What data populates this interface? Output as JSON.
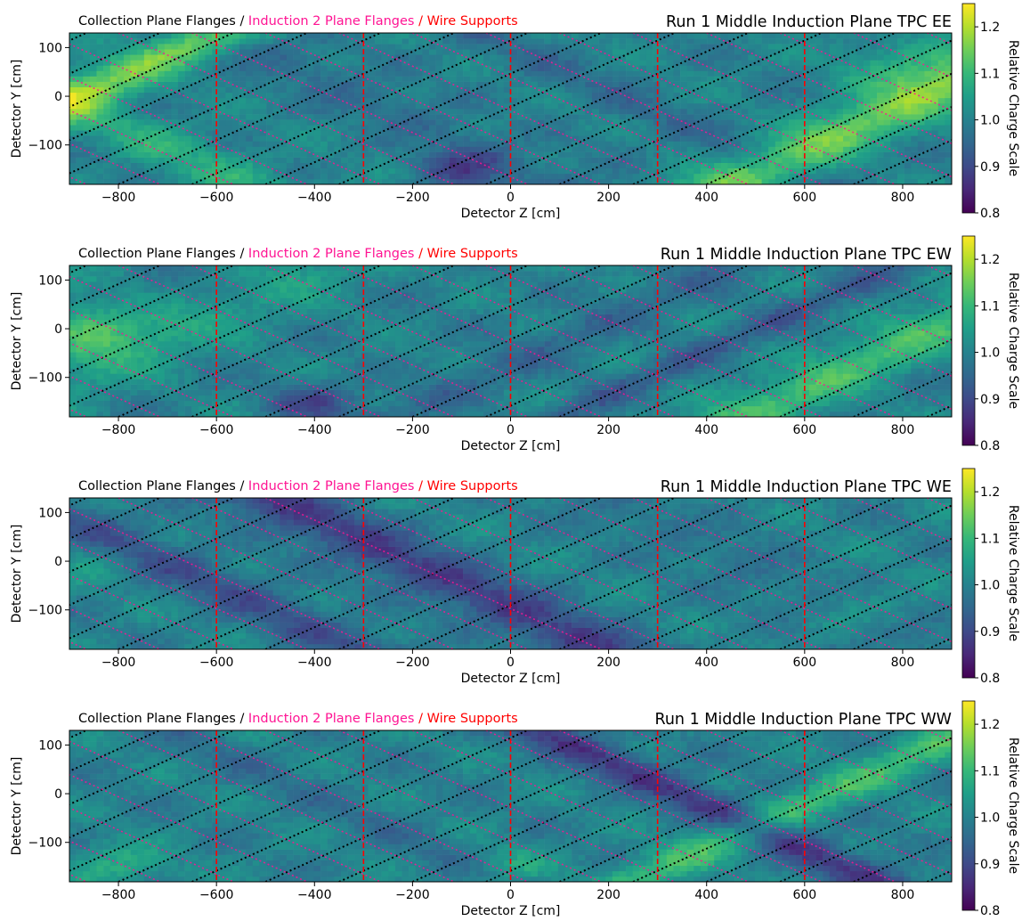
{
  "colors": {
    "collection_flanges": "#000000",
    "induction2_flanges": "#ff1493",
    "wire_supports": "#ff0000",
    "colormap": "viridis"
  },
  "chart_data": [
    {
      "type": "heatmap",
      "title": "Run 1 Middle Induction Plane TPC EE",
      "legend_labels": [
        "Collection Plane Flanges /",
        "Induction 2 Plane Flanges",
        "/ Wire Supports"
      ],
      "xlabel": "Detector Z [cm]",
      "ylabel": "Detector Y [cm]",
      "colorbar_label": "Relative Charge Scale",
      "xlim": [
        -900,
        900
      ],
      "ylim": [
        -181,
        130
      ],
      "clim": [
        0.8,
        1.25
      ],
      "xticks": [
        -800,
        -600,
        -400,
        -200,
        0,
        200,
        400,
        600,
        800
      ],
      "yticks": [
        100,
        0,
        -100
      ],
      "cticks": [
        0.8,
        0.9,
        1.0,
        1.1,
        1.2
      ],
      "wire_support_z": [
        -600,
        -300,
        0,
        300,
        600
      ],
      "value_features": [
        {
          "z": -760,
          "y": 60,
          "dir": "pos",
          "width": 70,
          "amp": 0.16
        },
        {
          "z": -800,
          "y": -60,
          "dir": "neg",
          "width": 90,
          "amp": 0.07
        },
        {
          "z": 840,
          "y": 0,
          "dir": "pos",
          "width": 80,
          "amp": 0.16
        },
        {
          "z": 800,
          "y": 60,
          "dir": "none",
          "width": 90,
          "amp": 0.08
        },
        {
          "z": -300,
          "y": 0,
          "dir": "neg",
          "width": 60,
          "amp": -0.05
        },
        {
          "z": -100,
          "y": -150,
          "dir": "none",
          "width": 60,
          "amp": -0.1
        },
        {
          "z": 200,
          "y": 0,
          "dir": "neg",
          "width": 60,
          "amp": -0.04
        }
      ]
    },
    {
      "type": "heatmap",
      "title": "Run 1 Middle Induction Plane TPC EW",
      "legend_labels": [
        "Collection Plane Flanges /",
        "Induction 2 Plane Flanges",
        "/ Wire Supports"
      ],
      "xlabel": "Detector Z [cm]",
      "ylabel": "Detector Y [cm]",
      "colorbar_label": "Relative Charge Scale",
      "xlim": [
        -900,
        900
      ],
      "ylim": [
        -181,
        130
      ],
      "clim": [
        0.8,
        1.25
      ],
      "xticks": [
        -800,
        -600,
        -400,
        -200,
        0,
        200,
        400,
        600,
        800
      ],
      "yticks": [
        100,
        0,
        -100
      ],
      "cticks": [
        0.8,
        0.9,
        1.0,
        1.1,
        1.2
      ],
      "wire_support_z": [
        -600,
        -300,
        0,
        300,
        600
      ],
      "value_features": [
        {
          "z": -850,
          "y": 0,
          "dir": "none",
          "width": 90,
          "amp": 0.12
        },
        {
          "z": -780,
          "y": -60,
          "dir": "pos",
          "width": 70,
          "amp": 0.06
        },
        {
          "z": 820,
          "y": -20,
          "dir": "pos",
          "width": 80,
          "amp": 0.12
        },
        {
          "z": -400,
          "y": -150,
          "dir": "none",
          "width": 60,
          "amp": -0.1
        },
        {
          "z": 150,
          "y": 0,
          "dir": "pos",
          "width": 60,
          "amp": -0.05
        },
        {
          "z": 500,
          "y": 0,
          "dir": "pos",
          "width": 50,
          "amp": -0.06
        }
      ]
    },
    {
      "type": "heatmap",
      "title": "Run 1 Middle Induction Plane TPC WE",
      "legend_labels": [
        "Collection Plane Flanges /",
        "Induction 2 Plane Flanges",
        "/ Wire Supports"
      ],
      "xlabel": "Detector Z [cm]",
      "ylabel": "Detector Y [cm]",
      "colorbar_label": "Relative Charge Scale",
      "xlim": [
        -900,
        900
      ],
      "ylim": [
        -181,
        130
      ],
      "clim": [
        0.8,
        1.25
      ],
      "xticks": [
        -800,
        -600,
        -400,
        -200,
        0,
        200,
        400,
        600,
        800
      ],
      "yticks": [
        100,
        0,
        -100
      ],
      "cticks": [
        0.8,
        0.9,
        1.0,
        1.1,
        1.2
      ],
      "wire_support_z": [
        -600,
        -300,
        0,
        300,
        600
      ],
      "value_features": [
        {
          "z": -700,
          "y": 0,
          "dir": "neg",
          "width": 70,
          "amp": -0.09
        },
        {
          "z": -170,
          "y": -20,
          "dir": "neg",
          "width": 80,
          "amp": -0.13
        },
        {
          "z": -850,
          "y": 0,
          "dir": "none",
          "width": 60,
          "amp": 0.04
        },
        {
          "z": 450,
          "y": 0,
          "dir": "neg",
          "width": 60,
          "amp": -0.04
        },
        {
          "z": 700,
          "y": -100,
          "dir": "none",
          "width": 80,
          "amp": 0.04
        }
      ]
    },
    {
      "type": "heatmap",
      "title": "Run 1 Middle Induction Plane TPC WW",
      "legend_labels": [
        "Collection Plane Flanges /",
        "Induction 2 Plane Flanges",
        "/ Wire Supports"
      ],
      "xlabel": "Detector Z [cm]",
      "ylabel": "Detector Y [cm]",
      "colorbar_label": "Relative Charge Scale",
      "xlim": [
        -900,
        900
      ],
      "ylim": [
        -181,
        130
      ],
      "clim": [
        0.8,
        1.25
      ],
      "xticks": [
        -800,
        -600,
        -400,
        -200,
        0,
        200,
        400,
        600,
        800
      ],
      "yticks": [
        100,
        0,
        -100
      ],
      "cticks": [
        0.8,
        0.9,
        1.0,
        1.1,
        1.2
      ],
      "wire_support_z": [
        -600,
        -300,
        0,
        300,
        600
      ],
      "value_features": [
        {
          "z": 440,
          "y": -40,
          "dir": "neg",
          "width": 60,
          "amp": -0.13
        },
        {
          "z": 820,
          "y": 80,
          "dir": "pos",
          "width": 70,
          "amp": 0.1
        },
        {
          "z": -800,
          "y": -150,
          "dir": "none",
          "width": 70,
          "amp": 0.08
        },
        {
          "z": 0,
          "y": -150,
          "dir": "none",
          "width": 60,
          "amp": 0.06
        },
        {
          "z": -400,
          "y": 0,
          "dir": "neg",
          "width": 60,
          "amp": -0.03
        }
      ]
    }
  ]
}
